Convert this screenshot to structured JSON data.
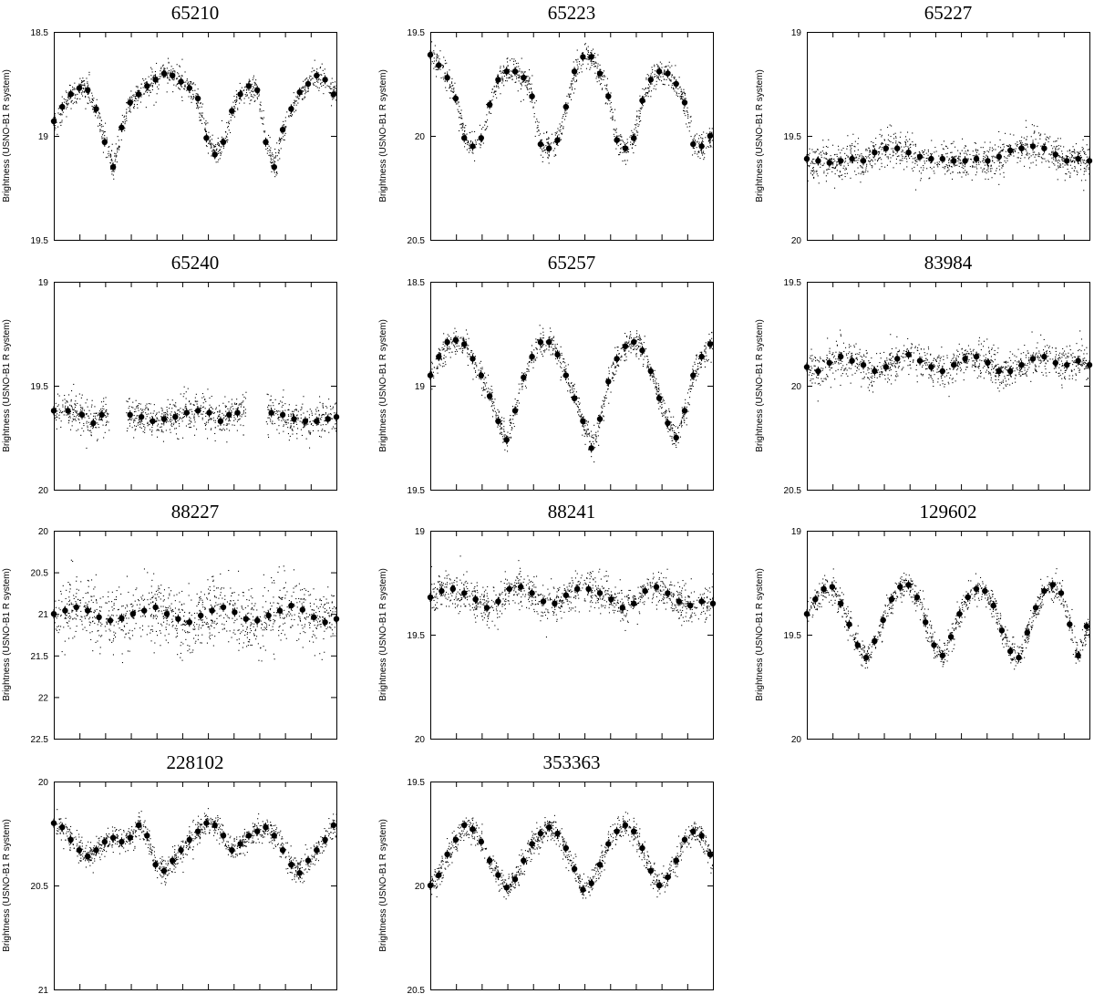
{
  "chart_data": [
    {
      "id": "65210",
      "type": "scatter",
      "title": "65210",
      "ylabel": "Brightness (USNO-B1 R system)",
      "y_axis_inverted": true,
      "ylim": [
        18.5,
        19.5
      ],
      "y_ticks": [
        "18.5",
        "19",
        "19.5"
      ],
      "grid": false,
      "legend": "none",
      "binned_x": [
        0,
        0.03,
        0.06,
        0.09,
        0.12,
        0.15,
        0.18,
        0.21,
        0.24,
        0.27,
        0.3,
        0.33,
        0.36,
        0.39,
        0.42,
        0.45,
        0.48,
        0.51,
        0.54,
        0.57,
        0.6,
        0.63,
        0.66,
        0.69,
        0.72,
        0.75,
        0.78,
        0.81,
        0.84,
        0.87,
        0.9,
        0.93,
        0.96,
        0.99
      ],
      "binned_y": [
        18.93,
        18.86,
        18.8,
        18.77,
        18.78,
        18.87,
        19.03,
        19.15,
        18.96,
        18.84,
        18.8,
        18.76,
        18.73,
        18.7,
        18.71,
        18.74,
        18.77,
        18.82,
        19.01,
        19.09,
        19.03,
        18.88,
        18.8,
        18.76,
        18.78,
        19.03,
        19.15,
        18.97,
        18.87,
        18.79,
        18.75,
        18.71,
        18.73,
        18.8
      ]
    },
    {
      "id": "65223",
      "type": "scatter",
      "title": "65223",
      "ylabel": "Brightness (USNO-B1 R system)",
      "y_axis_inverted": true,
      "ylim": [
        19.5,
        20.5
      ],
      "y_ticks": [
        "19.5",
        "20",
        "20.5"
      ],
      "grid": false,
      "legend": "none",
      "binned_x": [
        0,
        0.03,
        0.06,
        0.09,
        0.12,
        0.15,
        0.18,
        0.21,
        0.24,
        0.27,
        0.3,
        0.33,
        0.36,
        0.39,
        0.42,
        0.45,
        0.48,
        0.51,
        0.54,
        0.57,
        0.6,
        0.63,
        0.66,
        0.69,
        0.72,
        0.75,
        0.78,
        0.81,
        0.84,
        0.87,
        0.9,
        0.93,
        0.96,
        0.99
      ],
      "binned_y": [
        19.61,
        19.66,
        19.72,
        19.82,
        20.01,
        20.05,
        20.01,
        19.85,
        19.73,
        19.69,
        19.69,
        19.72,
        19.81,
        20.04,
        20.06,
        20.02,
        19.86,
        19.69,
        19.62,
        19.62,
        19.7,
        19.81,
        20.02,
        20.06,
        20.01,
        19.83,
        19.73,
        19.69,
        19.7,
        19.75,
        19.84,
        20.04,
        20.05,
        20.0
      ]
    },
    {
      "id": "65227",
      "type": "scatter",
      "title": "65227",
      "ylabel": "Brightness (USNO-B1 R system)",
      "y_axis_inverted": true,
      "ylim": [
        19,
        20
      ],
      "y_ticks": [
        "19",
        "19.5",
        "20"
      ],
      "grid": false,
      "legend": "none",
      "binned_x": [
        0,
        0.04,
        0.08,
        0.12,
        0.16,
        0.2,
        0.24,
        0.28,
        0.32,
        0.36,
        0.4,
        0.44,
        0.48,
        0.52,
        0.56,
        0.6,
        0.64,
        0.68,
        0.72,
        0.76,
        0.8,
        0.84,
        0.88,
        0.92,
        0.96,
        1.0
      ],
      "binned_y": [
        19.61,
        19.62,
        19.63,
        19.62,
        19.61,
        19.62,
        19.58,
        19.56,
        19.56,
        19.58,
        19.6,
        19.61,
        19.61,
        19.62,
        19.62,
        19.61,
        19.62,
        19.6,
        19.57,
        19.56,
        19.55,
        19.56,
        19.59,
        19.62,
        19.61,
        19.62
      ]
    },
    {
      "id": "65240",
      "type": "scatter",
      "title": "65240",
      "ylabel": "Brightness (USNO-B1 R system)",
      "y_axis_inverted": true,
      "ylim": [
        19,
        20
      ],
      "y_ticks": [
        "19",
        "19.5",
        "20"
      ],
      "grid": false,
      "legend": "none",
      "binned_x": [
        0,
        0.05,
        0.1,
        0.14,
        0.17,
        0.27,
        0.31,
        0.35,
        0.39,
        0.43,
        0.47,
        0.51,
        0.55,
        0.59,
        0.62,
        0.65,
        0.77,
        0.81,
        0.85,
        0.89,
        0.93,
        0.97,
        1.0
      ],
      "binned_y": [
        19.62,
        19.62,
        19.64,
        19.68,
        19.64,
        19.64,
        19.65,
        19.67,
        19.66,
        19.65,
        19.63,
        19.62,
        19.63,
        19.67,
        19.64,
        19.63,
        19.63,
        19.64,
        19.66,
        19.67,
        19.67,
        19.66,
        19.65
      ]
    },
    {
      "id": "65257",
      "type": "scatter",
      "title": "65257",
      "ylabel": "Brightness (USNO-B1 R system)",
      "y_axis_inverted": true,
      "ylim": [
        18.5,
        19.5
      ],
      "y_ticks": [
        "18.5",
        "19",
        "19.5"
      ],
      "grid": false,
      "legend": "none",
      "binned_x": [
        0,
        0.03,
        0.06,
        0.09,
        0.12,
        0.15,
        0.18,
        0.21,
        0.24,
        0.27,
        0.3,
        0.33,
        0.36,
        0.39,
        0.42,
        0.45,
        0.48,
        0.51,
        0.54,
        0.57,
        0.6,
        0.63,
        0.66,
        0.69,
        0.72,
        0.75,
        0.78,
        0.81,
        0.84,
        0.87,
        0.9,
        0.93,
        0.96,
        0.99
      ],
      "binned_y": [
        18.95,
        18.86,
        18.79,
        18.78,
        18.8,
        18.87,
        18.95,
        19.05,
        19.17,
        19.26,
        19.12,
        18.96,
        18.86,
        18.79,
        18.79,
        18.85,
        18.95,
        19.06,
        19.17,
        19.3,
        19.16,
        18.98,
        18.87,
        18.81,
        18.79,
        18.83,
        18.93,
        19.06,
        19.18,
        19.25,
        19.12,
        18.95,
        18.86,
        18.8
      ]
    },
    {
      "id": "83984",
      "type": "scatter",
      "title": "83984",
      "ylabel": "Brightness (USNO-B1 R system)",
      "y_axis_inverted": true,
      "ylim": [
        19.5,
        20.5
      ],
      "y_ticks": [
        "19.5",
        "20",
        "20.5"
      ],
      "grid": false,
      "legend": "none",
      "binned_x": [
        0,
        0.04,
        0.08,
        0.12,
        0.16,
        0.2,
        0.24,
        0.28,
        0.32,
        0.36,
        0.4,
        0.44,
        0.48,
        0.52,
        0.56,
        0.6,
        0.64,
        0.68,
        0.72,
        0.76,
        0.8,
        0.84,
        0.88,
        0.92,
        0.96,
        1.0
      ],
      "binned_y": [
        19.91,
        19.93,
        19.89,
        19.86,
        19.88,
        19.9,
        19.93,
        19.91,
        19.87,
        19.85,
        19.88,
        19.91,
        19.93,
        19.9,
        19.87,
        19.86,
        19.89,
        19.93,
        19.93,
        19.9,
        19.87,
        19.86,
        19.89,
        19.9,
        19.88,
        19.9
      ]
    },
    {
      "id": "88227",
      "type": "scatter",
      "title": "88227",
      "ylabel": "Brightness (USNO-B1 R system)",
      "y_axis_inverted": true,
      "ylim": [
        20,
        22.5
      ],
      "y_ticks": [
        "20",
        "20.5",
        "21",
        "21.5",
        "22",
        "22.5"
      ],
      "grid": false,
      "legend": "none",
      "binned_x": [
        0,
        0.04,
        0.08,
        0.12,
        0.16,
        0.2,
        0.24,
        0.28,
        0.32,
        0.36,
        0.4,
        0.44,
        0.48,
        0.52,
        0.56,
        0.6,
        0.64,
        0.68,
        0.72,
        0.76,
        0.8,
        0.84,
        0.88,
        0.92,
        0.96,
        1.0
      ],
      "binned_y": [
        21.0,
        20.96,
        20.92,
        20.96,
        21.04,
        21.08,
        21.05,
        21.0,
        20.96,
        20.92,
        21.0,
        21.06,
        21.1,
        21.02,
        20.96,
        20.92,
        20.98,
        21.06,
        21.08,
        21.02,
        20.96,
        20.9,
        20.95,
        21.04,
        21.1,
        21.06
      ]
    },
    {
      "id": "88241",
      "type": "scatter",
      "title": "88241",
      "ylabel": "Brightness (USNO-B1 R system)",
      "y_axis_inverted": true,
      "ylim": [
        19,
        20
      ],
      "y_ticks": [
        "19",
        "19.5",
        "20"
      ],
      "grid": false,
      "legend": "none",
      "binned_x": [
        0,
        0.04,
        0.08,
        0.12,
        0.16,
        0.2,
        0.24,
        0.28,
        0.32,
        0.36,
        0.4,
        0.44,
        0.48,
        0.52,
        0.56,
        0.6,
        0.64,
        0.68,
        0.72,
        0.76,
        0.8,
        0.84,
        0.88,
        0.92,
        0.96,
        1.0
      ],
      "binned_y": [
        19.32,
        19.29,
        19.28,
        19.3,
        19.33,
        19.37,
        19.34,
        19.28,
        19.27,
        19.3,
        19.34,
        19.35,
        19.31,
        19.28,
        19.28,
        19.3,
        19.33,
        19.37,
        19.35,
        19.29,
        19.27,
        19.3,
        19.34,
        19.36,
        19.34,
        19.35
      ]
    },
    {
      "id": "129602",
      "type": "scatter",
      "title": "129602",
      "ylabel": "Brightness (USNO-B1 R system)",
      "y_axis_inverted": true,
      "ylim": [
        19,
        20
      ],
      "y_ticks": [
        "19",
        "19.5",
        "20"
      ],
      "grid": false,
      "legend": "none",
      "binned_x": [
        0,
        0.03,
        0.06,
        0.09,
        0.12,
        0.15,
        0.18,
        0.21,
        0.24,
        0.27,
        0.3,
        0.33,
        0.36,
        0.39,
        0.42,
        0.45,
        0.48,
        0.51,
        0.54,
        0.57,
        0.6,
        0.63,
        0.66,
        0.69,
        0.72,
        0.75,
        0.78,
        0.81,
        0.84,
        0.87,
        0.9,
        0.93,
        0.96,
        0.99
      ],
      "binned_y": [
        19.4,
        19.33,
        19.28,
        19.27,
        19.35,
        19.45,
        19.55,
        19.61,
        19.53,
        19.43,
        19.33,
        19.27,
        19.26,
        19.32,
        19.44,
        19.55,
        19.6,
        19.51,
        19.4,
        19.32,
        19.28,
        19.29,
        19.36,
        19.48,
        19.58,
        19.61,
        19.49,
        19.37,
        19.29,
        19.26,
        19.3,
        19.45,
        19.6,
        19.46
      ]
    },
    {
      "id": "228102",
      "type": "scatter",
      "title": "228102",
      "ylabel": "Brightness (USNO-B1 R system)",
      "y_axis_inverted": true,
      "ylim": [
        20,
        21
      ],
      "y_ticks": [
        "20",
        "20.5",
        "21"
      ],
      "grid": false,
      "legend": "none",
      "binned_x": [
        0,
        0.03,
        0.06,
        0.09,
        0.12,
        0.15,
        0.18,
        0.21,
        0.24,
        0.27,
        0.3,
        0.33,
        0.36,
        0.39,
        0.42,
        0.45,
        0.48,
        0.51,
        0.54,
        0.57,
        0.6,
        0.63,
        0.66,
        0.69,
        0.72,
        0.75,
        0.78,
        0.81,
        0.84,
        0.87,
        0.9,
        0.93,
        0.96,
        0.99
      ],
      "binned_y": [
        20.2,
        20.22,
        20.28,
        20.33,
        20.36,
        20.33,
        20.29,
        20.27,
        20.29,
        20.27,
        20.21,
        20.26,
        20.4,
        20.43,
        20.38,
        20.33,
        20.28,
        20.24,
        20.2,
        20.21,
        20.26,
        20.33,
        20.3,
        20.26,
        20.24,
        20.22,
        20.26,
        20.33,
        20.4,
        20.44,
        20.38,
        20.33,
        20.28,
        20.21
      ]
    },
    {
      "id": "353363",
      "type": "scatter",
      "title": "353363",
      "ylabel": "Brightness (USNO-B1 R system)",
      "y_axis_inverted": true,
      "ylim": [
        19.5,
        20.5
      ],
      "y_ticks": [
        "19.5",
        "20",
        "20.5"
      ],
      "grid": false,
      "legend": "none",
      "binned_x": [
        0,
        0.03,
        0.06,
        0.09,
        0.12,
        0.15,
        0.18,
        0.21,
        0.24,
        0.27,
        0.3,
        0.33,
        0.36,
        0.39,
        0.42,
        0.45,
        0.48,
        0.51,
        0.54,
        0.57,
        0.6,
        0.63,
        0.66,
        0.69,
        0.72,
        0.75,
        0.78,
        0.81,
        0.84,
        0.87,
        0.9,
        0.93,
        0.96,
        0.99
      ],
      "binned_y": [
        20.0,
        19.95,
        19.85,
        19.78,
        19.71,
        19.73,
        19.79,
        19.88,
        19.95,
        20.01,
        19.97,
        19.88,
        19.8,
        19.75,
        19.72,
        19.75,
        19.82,
        19.92,
        20.02,
        19.99,
        19.9,
        19.8,
        19.74,
        19.71,
        19.74,
        19.82,
        19.93,
        20.0,
        19.96,
        19.88,
        19.78,
        19.74,
        19.76,
        19.85
      ]
    }
  ]
}
